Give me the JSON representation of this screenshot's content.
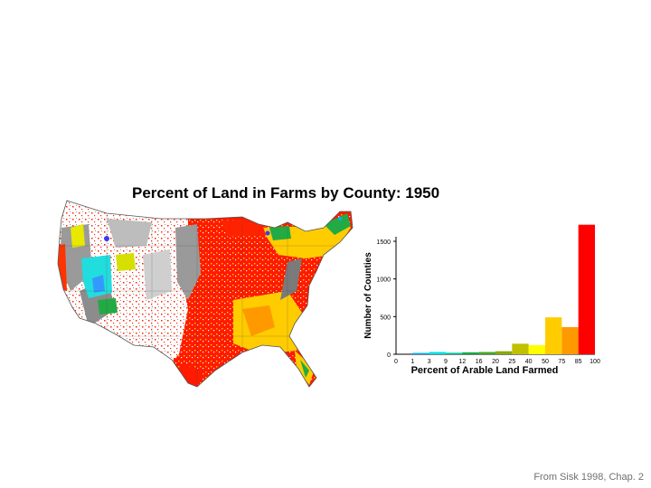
{
  "chart_data": {
    "type": "bar",
    "title": "Percent of Land in Farms by County: 1950",
    "xlabel": "Percent of Arable Land Farmed",
    "ylabel": "Number of Counties",
    "x_ticks": [
      "0",
      "1",
      "3",
      "9",
      "12",
      "16",
      "20",
      "25",
      "40",
      "50",
      "75",
      "85",
      "100"
    ],
    "categories": [
      "0-1",
      "1-3",
      "3-9",
      "9-12",
      "12-16",
      "16-20",
      "20-25",
      "25-40",
      "40-50",
      "50-75",
      "75-85",
      "85-100"
    ],
    "values": [
      0,
      5,
      30,
      20,
      25,
      30,
      40,
      140,
      120,
      490,
      360,
      1720
    ],
    "colors": [
      "#3a3aff",
      "#00b4ff",
      "#00e0e0",
      "#00c8a0",
      "#00aa44",
      "#44aa22",
      "#88aa00",
      "#c0c000",
      "#ffff00",
      "#ffcc00",
      "#ff9900",
      "#ff0000"
    ],
    "y_ticks": [
      0,
      500,
      1000,
      1500
    ],
    "ylim": [
      0,
      1800
    ],
    "grid": false
  },
  "footer": {
    "credit": "From Sisk 1998, Chap. 2"
  }
}
